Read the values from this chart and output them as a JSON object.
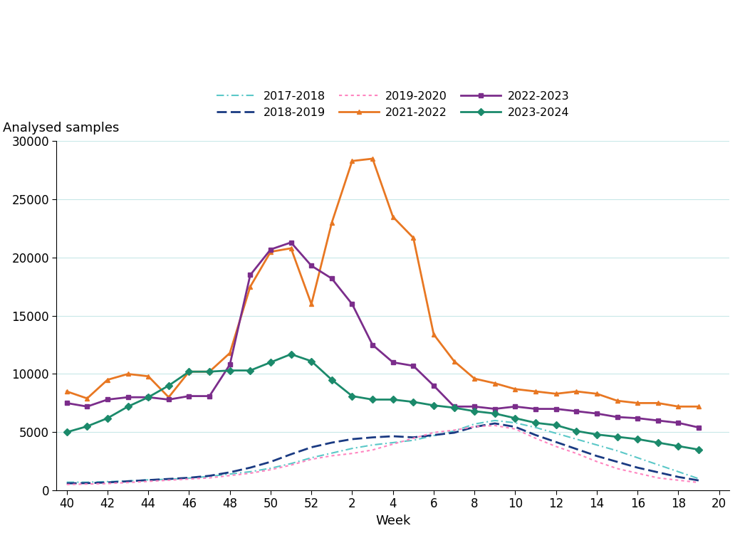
{
  "weeks": [
    40,
    41,
    42,
    43,
    44,
    45,
    46,
    47,
    48,
    49,
    50,
    51,
    52,
    2,
    3,
    4,
    5,
    6,
    7,
    8,
    9,
    10,
    11,
    12,
    13,
    14,
    15,
    16,
    17,
    18,
    19,
    20
  ],
  "season_2017_2018": {
    "label": "2017-2018",
    "color": "#5BC8C8",
    "linewidth": 1.5,
    "values": [
      700,
      700,
      750,
      800,
      900,
      950,
      1050,
      1200,
      1400,
      1600,
      1900,
      2300,
      2800,
      3200,
      3600,
      3900,
      4100,
      4300,
      4700,
      5100,
      5700,
      6000,
      5800,
      5400,
      4900,
      4400,
      3900,
      3400,
      2800,
      2200,
      1600,
      1000
    ]
  },
  "season_2018_2019": {
    "label": "2018-2019",
    "color": "#1A3A82",
    "linewidth": 2.0,
    "values": [
      600,
      620,
      680,
      780,
      880,
      980,
      1080,
      1250,
      1550,
      1950,
      2450,
      3100,
      3700,
      4100,
      4400,
      4550,
      4650,
      4550,
      4750,
      4950,
      5450,
      5750,
      5450,
      4750,
      4150,
      3550,
      2950,
      2450,
      1950,
      1550,
      1150,
      850
    ]
  },
  "season_2019_2020": {
    "label": "2019-2020",
    "color": "#FF85C0",
    "linewidth": 1.5,
    "values": [
      500,
      540,
      580,
      670,
      770,
      870,
      970,
      1070,
      1270,
      1470,
      1770,
      2170,
      2670,
      2970,
      3170,
      3470,
      3970,
      4470,
      4970,
      5170,
      5470,
      5570,
      5270,
      4470,
      3770,
      3170,
      2470,
      1870,
      1470,
      1070,
      870,
      670
    ]
  },
  "season_2021_2022": {
    "label": "2021-2022",
    "color": "#E87722",
    "linewidth": 2.0,
    "values": [
      8500,
      7900,
      9500,
      10000,
      9800,
      8000,
      10200,
      10200,
      11800,
      17500,
      20500,
      20800,
      16000,
      23000,
      28300,
      28500,
      23500,
      21700,
      13400,
      11100,
      9600,
      9200,
      8700,
      8500,
      8300,
      8500,
      8300,
      7700,
      7500,
      7500,
      7200,
      7200
    ]
  },
  "season_2022_2023": {
    "label": "2022-2023",
    "color": "#7B2D8B",
    "linewidth": 2.0,
    "values": [
      7500,
      7200,
      7800,
      8000,
      8000,
      7800,
      8100,
      8100,
      10800,
      18500,
      20700,
      21300,
      19300,
      18200,
      16000,
      12500,
      11000,
      10700,
      9000,
      7200,
      7200,
      7000,
      7200,
      7000,
      7000,
      6800,
      6600,
      6300,
      6200,
      6000,
      5800,
      5400
    ]
  },
  "season_2023_2024": {
    "label": "2023-2024",
    "color": "#1B8A6B",
    "linewidth": 2.0,
    "values": [
      5000,
      5500,
      6200,
      7200,
      8000,
      9000,
      10200,
      10200,
      10300,
      10300,
      11000,
      11700,
      11100,
      9500,
      8100,
      7800,
      7800,
      7600,
      7300,
      7100,
      6800,
      6600,
      6200,
      5800,
      5600,
      5100,
      4800,
      4600,
      4400,
      4100,
      3800,
      3500
    ]
  },
  "x_tick_labels": [
    "40",
    "42",
    "44",
    "46",
    "48",
    "50",
    "52",
    "2",
    "4",
    "6",
    "8",
    "10",
    "12",
    "14",
    "16",
    "18",
    "20"
  ],
  "ylabel": "Analysed samples",
  "xlabel": "Week",
  "ylim": [
    0,
    30000
  ],
  "yticks": [
    0,
    5000,
    10000,
    15000,
    20000,
    25000,
    30000
  ],
  "background_color": "#FFFFFF",
  "grid_color": "#C8E8E8",
  "axis_fontsize": 13,
  "tick_fontsize": 12
}
